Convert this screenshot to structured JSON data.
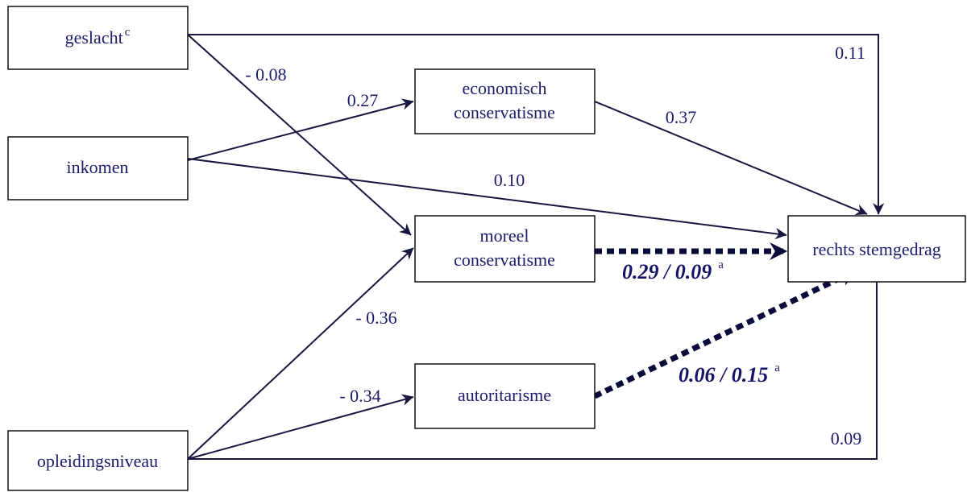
{
  "nodes": [
    {
      "label": "geslacht",
      "superscript": "c"
    },
    {
      "label": "inkomen"
    },
    {
      "label": "opleidingsniveau"
    },
    {
      "lines": [
        "economisch",
        "conservatisme"
      ]
    },
    {
      "lines": [
        "moreel",
        "conservatisme"
      ]
    },
    {
      "label": "autoritarisme"
    },
    {
      "label": "rechts stemgedrag"
    }
  ],
  "edges": [
    {
      "label": "0.11"
    },
    {
      "label": "- 0.08"
    },
    {
      "label": "0.27"
    },
    {
      "label": "0.10"
    },
    {
      "label": "0.37"
    },
    {
      "label": "0.29 / 0.09",
      "superscript": "a"
    },
    {
      "label": "- 0.36"
    },
    {
      "label": "- 0.34"
    },
    {
      "label": "0.06 / 0.15",
      "superscript": "a"
    },
    {
      "label": "0.09"
    }
  ]
}
